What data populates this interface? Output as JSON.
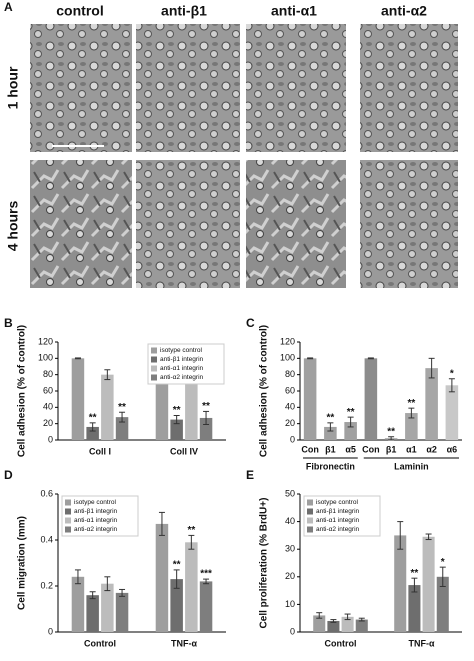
{
  "figure": {
    "panel_a": {
      "letter": "A",
      "columns": [
        "control",
        "anti-β1",
        "anti-α1",
        "anti-α2"
      ],
      "rows": [
        "1 hour",
        "4 hours"
      ]
    }
  },
  "chart_data": [
    {
      "type": "bar",
      "panel": "B",
      "ylabel": "Cell adhesion (% of control)",
      "categories": [
        "Coll I",
        "Coll IV"
      ],
      "ylim": [
        0,
        120
      ],
      "yticks": [
        0,
        20,
        40,
        60,
        80,
        100,
        120
      ],
      "legend": "upper right",
      "series": [
        {
          "name": "isotype control",
          "color": "#9e9e9e",
          "values": [
            100,
            100
          ],
          "errors": [
            0.5,
            0.5
          ],
          "labels": [
            null,
            null
          ]
        },
        {
          "name": "anti-β1 integrin",
          "color": "#6e6e6e",
          "values": [
            16,
            25
          ],
          "errors": [
            5,
            5
          ],
          "labels": [
            "**",
            "**"
          ]
        },
        {
          "name": "anti-α1 integrin",
          "color": "#bcbcbc",
          "values": [
            80,
            84
          ],
          "errors": [
            6,
            4
          ],
          "labels": [
            null,
            null
          ]
        },
        {
          "name": "anti-α2 integrin",
          "color": "#7e7e7e",
          "values": [
            28,
            27
          ],
          "errors": [
            6,
            8
          ],
          "labels": [
            "**",
            "**"
          ]
        }
      ]
    },
    {
      "type": "bar",
      "panel": "C",
      "ylabel": "Cell adhesion (% of control)",
      "ylim": [
        0,
        120
      ],
      "yticks": [
        0,
        20,
        40,
        60,
        80,
        100,
        120
      ],
      "groups": [
        {
          "name": "Fibronectin",
          "categories": [
            "Con",
            "β1",
            "α5"
          ],
          "values": [
            100,
            16,
            22
          ],
          "errors": [
            0.5,
            5,
            6
          ],
          "labels": [
            null,
            "**",
            "**"
          ],
          "colors": [
            "#a0a0a0",
            "#a0a0a0",
            "#a0a0a0"
          ]
        },
        {
          "name": "Laminin",
          "categories": [
            "Con",
            "β1",
            "α1",
            "α2",
            "α6"
          ],
          "values": [
            100,
            2,
            33,
            88,
            67
          ],
          "errors": [
            0.5,
            2,
            6,
            12,
            8
          ],
          "labels": [
            null,
            "**",
            "**",
            null,
            "*"
          ],
          "colors": [
            "#8c8c8c",
            "#8c8c8c",
            "#a6a6a6",
            "#a6a6a6",
            "#c8c8c8"
          ]
        }
      ]
    },
    {
      "type": "bar",
      "panel": "D",
      "ylabel": "Cell migration (mm)",
      "categories": [
        "Control",
        "TNF-α"
      ],
      "ylim": [
        0,
        0.6
      ],
      "yticks": [
        0,
        0.2,
        0.4,
        0.6
      ],
      "legend": "upper left",
      "series": [
        {
          "name": "isotype control",
          "color": "#9e9e9e",
          "values": [
            0.24,
            0.47
          ],
          "errors": [
            0.03,
            0.05
          ],
          "labels": [
            null,
            null
          ]
        },
        {
          "name": "anti-β1 integrin",
          "color": "#6e6e6e",
          "values": [
            0.16,
            0.23
          ],
          "errors": [
            0.015,
            0.04
          ],
          "labels": [
            null,
            "**"
          ]
        },
        {
          "name": "anti-α1 integrin",
          "color": "#bcbcbc",
          "values": [
            0.21,
            0.39
          ],
          "errors": [
            0.03,
            0.03
          ],
          "labels": [
            null,
            "**"
          ]
        },
        {
          "name": "anti-α2 integrin",
          "color": "#7e7e7e",
          "values": [
            0.17,
            0.22
          ],
          "errors": [
            0.015,
            0.01
          ],
          "labels": [
            null,
            "***"
          ]
        }
      ]
    },
    {
      "type": "bar",
      "panel": "E",
      "ylabel": "Cell proliferation (% BrdU+)",
      "categories": [
        "Control",
        "TNF-α"
      ],
      "ylim": [
        0,
        50
      ],
      "yticks": [
        0,
        10,
        20,
        30,
        40,
        50
      ],
      "legend": "upper left",
      "series": [
        {
          "name": "isotype control",
          "color": "#9e9e9e",
          "values": [
            6,
            35
          ],
          "errors": [
            1,
            5
          ],
          "labels": [
            null,
            null
          ]
        },
        {
          "name": "anti-β1 integrin",
          "color": "#6e6e6e",
          "values": [
            4,
            17
          ],
          "errors": [
            0.5,
            2.5
          ],
          "labels": [
            null,
            "**"
          ]
        },
        {
          "name": "anti-α1 integrin",
          "color": "#bcbcbc",
          "values": [
            5.5,
            34.5
          ],
          "errors": [
            1,
            1
          ],
          "labels": [
            null,
            null
          ]
        },
        {
          "name": "anti-α2 integrin",
          "color": "#7e7e7e",
          "values": [
            4.5,
            20
          ],
          "errors": [
            0.5,
            3.5
          ],
          "labels": [
            null,
            "*"
          ]
        }
      ]
    }
  ]
}
